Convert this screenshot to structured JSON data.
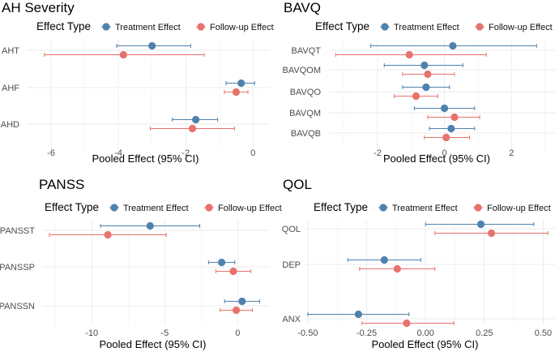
{
  "legend": {
    "title": "Effect Type",
    "entries": [
      {
        "name": "Treatment Effect",
        "color": "#4f81ad"
      },
      {
        "name": "Follow-up Effect",
        "color": "#e8726d"
      }
    ]
  },
  "chart_data": [
    {
      "type": "forest",
      "id": "ah",
      "title": "AH Severity",
      "xlabel": "Pooled Effect (95% CI)",
      "xlim": [
        -6.7,
        0.5
      ],
      "xticks": [
        -6,
        -4,
        -2,
        0
      ],
      "xtick_labels": [
        "-6",
        "-4",
        "-2",
        "0"
      ],
      "rows": [
        {
          "label": "AHT",
          "treatment": {
            "est": -3.0,
            "lo": -4.05,
            "hi": -1.85
          },
          "followup": {
            "est": -3.85,
            "lo": -6.2,
            "hi": -1.45
          }
        },
        {
          "label": "AHF",
          "treatment": {
            "est": -0.35,
            "lo": -0.8,
            "hi": 0.05
          },
          "followup": {
            "est": -0.5,
            "lo": -0.85,
            "hi": -0.15
          }
        },
        {
          "label": "AHD",
          "treatment": {
            "est": -1.7,
            "lo": -2.4,
            "hi": -1.05
          },
          "followup": {
            "est": -1.8,
            "lo": -3.05,
            "hi": -0.55
          }
        }
      ]
    },
    {
      "type": "forest",
      "id": "bavq",
      "title": "BAVQ",
      "xlabel": "Pooled Effect (95% CI)",
      "xlim": [
        -3.45,
        3.3
      ],
      "xticks": [
        -2,
        0,
        2
      ],
      "xtick_labels": [
        "-2",
        "0",
        "2"
      ],
      "rows": [
        {
          "label": "BAVQT",
          "treatment": {
            "est": 0.25,
            "lo": -2.2,
            "hi": 2.75
          },
          "followup": {
            "est": -1.05,
            "lo": -3.25,
            "hi": 1.25
          }
        },
        {
          "label": "BAVQOM",
          "treatment": {
            "est": -0.6,
            "lo": -1.8,
            "hi": 0.55
          },
          "followup": {
            "est": -0.5,
            "lo": -1.25,
            "hi": 0.3
          }
        },
        {
          "label": "BAVQO",
          "treatment": {
            "est": -0.55,
            "lo": -1.25,
            "hi": 0.15
          },
          "followup": {
            "est": -0.85,
            "lo": -1.5,
            "hi": -0.2
          }
        },
        {
          "label": "BAVQM",
          "treatment": {
            "est": 0.0,
            "lo": -0.9,
            "hi": 0.9
          },
          "followup": {
            "est": 0.3,
            "lo": -0.5,
            "hi": 1.05
          }
        },
        {
          "label": "BAVQB",
          "treatment": {
            "est": 0.2,
            "lo": -0.45,
            "hi": 0.9
          },
          "followup": {
            "est": 0.05,
            "lo": -0.6,
            "hi": 0.75
          }
        }
      ]
    },
    {
      "type": "forest",
      "id": "panss",
      "title": "PANSS",
      "xlabel": "Pooled Effect (95% CI)",
      "xlim": [
        -13.4,
        2.2
      ],
      "xticks": [
        -10,
        -5,
        0
      ],
      "xtick_labels": [
        "-10",
        "-5",
        "0"
      ],
      "rows": [
        {
          "label": "PANSST",
          "treatment": {
            "est": -6.0,
            "lo": -9.4,
            "hi": -2.6
          },
          "followup": {
            "est": -8.9,
            "lo": -12.9,
            "hi": -4.9
          }
        },
        {
          "label": "PANSSP",
          "treatment": {
            "est": -1.1,
            "lo": -2.0,
            "hi": -0.2
          },
          "followup": {
            "est": -0.3,
            "lo": -1.5,
            "hi": 0.9
          }
        },
        {
          "label": "PANSSN",
          "treatment": {
            "est": 0.3,
            "lo": -0.9,
            "hi": 1.5
          },
          "followup": {
            "est": -0.1,
            "lo": -1.2,
            "hi": 1.0
          }
        }
      ]
    },
    {
      "type": "forest",
      "id": "qol",
      "title": "QOL",
      "xlabel": "Pooled Effect (95% CI)",
      "xlim": [
        -0.51,
        0.55
      ],
      "xticks": [
        -0.5,
        -0.25,
        0.0,
        0.25,
        0.5
      ],
      "xtick_labels": [
        "-0.50",
        "-0.25",
        "0.00",
        "0.25",
        "0.50"
      ],
      "rows": [
        {
          "label": "QOL",
          "treatment": {
            "est": 0.235,
            "lo": 0.0,
            "hi": 0.46
          },
          "followup": {
            "est": 0.28,
            "lo": 0.04,
            "hi": 0.52
          }
        },
        {
          "label": "DEP",
          "treatment": {
            "est": -0.175,
            "lo": -0.33,
            "hi": -0.02
          },
          "followup": {
            "est": -0.12,
            "lo": -0.28,
            "hi": 0.04
          }
        },
        {
          "label": "ANX",
          "treatment": {
            "est": -0.285,
            "lo": -0.5,
            "hi": -0.07
          },
          "followup": {
            "est": -0.08,
            "lo": -0.27,
            "hi": 0.12
          }
        }
      ]
    }
  ]
}
